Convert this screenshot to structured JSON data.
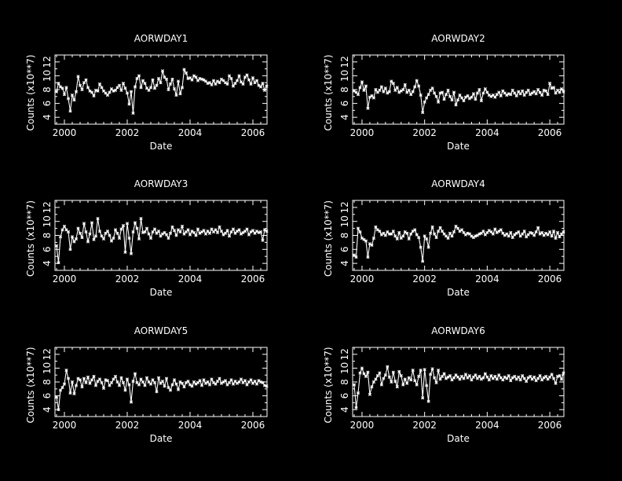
{
  "chart_data": [
    {
      "type": "line",
      "title": "AORWDAY1",
      "xlabel": "Date",
      "ylabel": "Counts (x10**7)",
      "xlim": [
        1999.7,
        2006.45
      ],
      "ylim": [
        3,
        13
      ],
      "xticks": [
        "2000",
        "2002",
        "2004",
        "2006"
      ],
      "yticks": [
        "4",
        "6",
        "8",
        "10",
        "12"
      ],
      "series_color": "#ffffff",
      "x_start": 1999.75,
      "x_step": 0.0625,
      "values": [
        7.7,
        8.9,
        8.4,
        8.2,
        7.3,
        8.3,
        6.7,
        4.9,
        7.2,
        6.5,
        7.7,
        9.9,
        8.6,
        8.0,
        9.0,
        9.4,
        8.3,
        7.8,
        7.6,
        7.1,
        7.9,
        7.8,
        8.8,
        8.3,
        7.8,
        7.5,
        7.2,
        7.6,
        8.1,
        7.8,
        7.9,
        8.3,
        8.6,
        7.9,
        8.9,
        8.2,
        7.5,
        5.9,
        7.7,
        4.6,
        8.4,
        9.6,
        10.0,
        8.3,
        9.3,
        8.9,
        8.2,
        7.9,
        8.3,
        9.4,
        8.2,
        8.6,
        9.6,
        9.0,
        10.7,
        9.8,
        9.5,
        8.0,
        8.8,
        9.5,
        8.1,
        7.2,
        9.2,
        7.4,
        8.3,
        10.9,
        10.4,
        9.6,
        9.7,
        9.4,
        10.0,
        9.8,
        9.3,
        9.6,
        9.5,
        9.4,
        9.2,
        8.9,
        9.0,
        8.7,
        9.3,
        8.8,
        9.2,
        9.0,
        9.5,
        9.3,
        9.0,
        8.8,
        10.0,
        9.6,
        8.5,
        8.9,
        9.3,
        10.0,
        9.1,
        8.8,
        9.8,
        10.1,
        9.4,
        8.8,
        9.7,
        9.0,
        9.3,
        8.6,
        8.4,
        8.9,
        7.9,
        8.5
      ]
    },
    {
      "type": "line",
      "title": "AORWDAY2",
      "xlabel": "Date",
      "ylabel": "Counts (x10**7)",
      "xlim": [
        1999.7,
        2006.45
      ],
      "ylim": [
        3,
        13
      ],
      "xticks": [
        "2000",
        "2002",
        "2004",
        "2006"
      ],
      "yticks": [
        "4",
        "6",
        "8",
        "10",
        "12"
      ],
      "series_color": "#ffffff",
      "x_start": 1999.75,
      "x_step": 0.0625,
      "values": [
        7.8,
        7.6,
        7.3,
        8.3,
        9.1,
        7.9,
        8.5,
        5.3,
        6.9,
        7.1,
        6.8,
        8.0,
        7.6,
        7.9,
        8.4,
        7.7,
        8.2,
        7.5,
        7.7,
        9.2,
        8.9,
        7.9,
        8.3,
        7.6,
        7.8,
        8.0,
        8.7,
        7.6,
        7.9,
        7.3,
        7.7,
        8.4,
        9.3,
        8.5,
        7.2,
        4.7,
        6.2,
        6.8,
        7.3,
        7.9,
        8.2,
        7.5,
        7.0,
        6.2,
        7.5,
        7.6,
        6.6,
        7.3,
        7.9,
        7.0,
        6.5,
        7.6,
        5.8,
        6.5,
        7.2,
        6.8,
        6.4,
        6.9,
        7.1,
        6.7,
        6.9,
        7.4,
        6.6,
        7.5,
        8.0,
        6.4,
        7.5,
        8.1,
        7.6,
        7.2,
        7.0,
        7.2,
        6.9,
        7.3,
        7.6,
        7.1,
        7.8,
        7.5,
        7.2,
        7.4,
        7.3,
        7.9,
        7.5,
        7.1,
        7.7,
        7.4,
        7.8,
        7.2,
        7.6,
        7.9,
        7.3,
        7.5,
        7.7,
        7.4,
        8.0,
        7.6,
        7.2,
        7.9,
        7.8,
        7.3,
        8.9,
        8.2,
        8.3,
        7.5,
        7.9,
        7.6,
        8.1,
        7.7
      ]
    },
    {
      "type": "line",
      "title": "AORWDAY3",
      "xlabel": "Date",
      "ylabel": "Counts (x10**7)",
      "xlim": [
        1999.7,
        2006.45
      ],
      "ylim": [
        3,
        13
      ],
      "xticks": [
        "2000",
        "2002",
        "2004",
        "2006"
      ],
      "yticks": [
        "4",
        "6",
        "8",
        "10",
        "12"
      ],
      "series_color": "#ffffff",
      "x_start": 1999.75,
      "x_step": 0.0625,
      "values": [
        6.5,
        4.1,
        7.8,
        8.8,
        9.3,
        8.8,
        8.5,
        6.0,
        7.8,
        7.1,
        7.5,
        9.0,
        8.3,
        7.7,
        9.7,
        8.5,
        7.1,
        8.2,
        9.8,
        7.4,
        7.9,
        10.4,
        8.6,
        7.9,
        7.5,
        8.3,
        8.6,
        8.0,
        7.2,
        7.6,
        8.8,
        8.3,
        7.6,
        8.9,
        9.4,
        5.6,
        9.7,
        7.6,
        5.4,
        8.5,
        9.8,
        9.0,
        7.5,
        10.4,
        8.4,
        8.5,
        9.0,
        8.2,
        7.6,
        8.5,
        8.9,
        8.3,
        8.6,
        7.9,
        8.2,
        8.4,
        8.1,
        7.6,
        8.3,
        9.2,
        8.7,
        8.0,
        8.8,
        8.5,
        9.3,
        8.2,
        8.5,
        8.8,
        8.1,
        8.6,
        8.4,
        8.0,
        8.9,
        8.3,
        8.5,
        8.7,
        8.2,
        8.6,
        8.3,
        8.9,
        8.5,
        8.8,
        8.4,
        9.2,
        8.6,
        8.1,
        8.3,
        8.7,
        7.9,
        8.5,
        8.9,
        8.3,
        8.6,
        8.8,
        8.2,
        8.4,
        8.6,
        8.9,
        8.1,
        8.5,
        8.7,
        8.3,
        8.6,
        8.4,
        8.5,
        7.3,
        8.8,
        8.6
      ]
    },
    {
      "type": "line",
      "title": "AORWDAY4",
      "xlabel": "Date",
      "ylabel": "Counts (x10**7)",
      "xlim": [
        1999.7,
        2006.45
      ],
      "ylim": [
        3,
        13
      ],
      "xticks": [
        "2000",
        "2002",
        "2004",
        "2006"
      ],
      "yticks": [
        "4",
        "6",
        "8",
        "10",
        "12"
      ],
      "series_color": "#ffffff",
      "x_start": 1999.75,
      "x_step": 0.0625,
      "values": [
        5.2,
        4.9,
        9.0,
        8.5,
        7.6,
        7.4,
        7.2,
        4.9,
        6.8,
        6.6,
        7.6,
        9.2,
        8.8,
        8.6,
        8.1,
        8.3,
        8.0,
        8.5,
        8.2,
        8.2,
        8.6,
        7.9,
        7.5,
        8.4,
        7.6,
        7.9,
        8.5,
        8.3,
        7.5,
        8.2,
        8.6,
        8.8,
        8.1,
        7.7,
        6.3,
        4.3,
        7.9,
        7.5,
        6.3,
        8.3,
        9.2,
        8.2,
        7.7,
        8.6,
        9.1,
        8.6,
        8.2,
        7.9,
        7.6,
        8.3,
        7.9,
        8.5,
        9.3,
        9.0,
        8.6,
        8.8,
        8.4,
        8.1,
        8.3,
        8.2,
        7.9,
        7.7,
        7.9,
        8.0,
        8.2,
        8.3,
        8.6,
        8.1,
        8.4,
        8.7,
        8.5,
        8.2,
        8.9,
        8.4,
        8.6,
        8.8,
        8.3,
        8.0,
        8.2,
        7.9,
        8.4,
        7.7,
        8.1,
        8.3,
        8.5,
        7.9,
        8.2,
        8.6,
        7.8,
        8.1,
        8.4,
        8.3,
        8.0,
        8.5,
        9.1,
        8.2,
        8.4,
        8.0,
        8.3,
        8.1,
        8.5,
        7.9,
        8.6,
        7.6,
        8.4,
        7.8,
        8.2,
        8.5
      ]
    },
    {
      "type": "line",
      "title": "AORWDAY5",
      "xlabel": "Date",
      "ylabel": "Counts (x10**7)",
      "xlim": [
        1999.7,
        2006.45
      ],
      "ylim": [
        3,
        13
      ],
      "xticks": [
        "2000",
        "2002",
        "2004",
        "2006"
      ],
      "yticks": [
        "4",
        "6",
        "8",
        "10",
        "12"
      ],
      "series_color": "#ffffff",
      "x_start": 1999.75,
      "x_step": 0.0625,
      "values": [
        5.8,
        4.0,
        6.8,
        7.2,
        7.7,
        9.7,
        8.5,
        6.4,
        8.0,
        6.3,
        7.5,
        8.5,
        8.3,
        7.3,
        8.5,
        7.9,
        8.7,
        7.8,
        8.3,
        8.8,
        7.5,
        8.1,
        8.4,
        7.9,
        7.1,
        8.3,
        8.2,
        7.5,
        7.9,
        8.4,
        8.8,
        8.0,
        7.5,
        8.6,
        7.9,
        6.8,
        8.4,
        7.6,
        5.1,
        8.1,
        9.2,
        7.9,
        7.6,
        8.4,
        8.0,
        7.5,
        8.6,
        8.0,
        7.7,
        8.3,
        7.9,
        6.6,
        8.6,
        7.8,
        8.1,
        7.4,
        8.5,
        7.2,
        6.8,
        7.6,
        8.3,
        7.7,
        6.9,
        8.0,
        7.8,
        7.3,
        7.9,
        8.1,
        7.6,
        7.4,
        8.0,
        7.7,
        7.9,
        8.2,
        7.5,
        8.3,
        7.8,
        8.0,
        7.6,
        8.4,
        7.9,
        7.7,
        8.1,
        8.5,
        7.8,
        8.0,
        8.2,
        7.6,
        7.9,
        8.3,
        7.7,
        8.1,
        7.8,
        8.0,
        8.4,
        7.9,
        8.2,
        7.6,
        8.0,
        8.3,
        7.8,
        8.1,
        7.7,
        8.2,
        8.0,
        7.9,
        7.5,
        7.4
      ]
    },
    {
      "type": "line",
      "title": "AORWDAY6",
      "xlabel": "Date",
      "ylabel": "Counts (x10**7)",
      "xlim": [
        1999.7,
        2006.45
      ],
      "ylim": [
        3,
        13
      ],
      "xticks": [
        "2000",
        "2002",
        "2004",
        "2006"
      ],
      "yticks": [
        "4",
        "6",
        "8",
        "10",
        "12"
      ],
      "series_color": "#ffffff",
      "x_start": 1999.75,
      "x_step": 0.0625,
      "values": [
        7.6,
        4.3,
        6.4,
        9.3,
        10.0,
        9.2,
        8.8,
        9.4,
        6.2,
        7.3,
        8.0,
        8.4,
        8.9,
        9.3,
        7.6,
        8.5,
        9.0,
        10.2,
        8.7,
        8.0,
        9.4,
        8.1,
        7.3,
        9.5,
        8.9,
        7.6,
        8.4,
        7.8,
        8.6,
        8.3,
        9.7,
        8.2,
        7.6,
        8.8,
        9.7,
        5.7,
        9.8,
        7.5,
        5.2,
        9.1,
        9.9,
        8.6,
        7.9,
        9.7,
        8.4,
        8.8,
        9.2,
        8.5,
        8.7,
        8.9,
        8.3,
        8.6,
        9.0,
        8.7,
        8.4,
        8.8,
        8.5,
        9.1,
        8.6,
        8.9,
        8.3,
        8.7,
        9.0,
        8.5,
        8.8,
        8.4,
        8.6,
        9.2,
        8.7,
        8.3,
        8.9,
        8.5,
        8.8,
        8.4,
        9.0,
        8.6,
        8.3,
        8.7,
        8.5,
        8.9,
        8.2,
        8.6,
        8.8,
        8.4,
        8.7,
        8.3,
        8.9,
        8.5,
        8.1,
        8.6,
        8.8,
        8.4,
        8.7,
        8.2,
        8.5,
        8.9,
        8.3,
        8.6,
        8.8,
        8.4,
        8.7,
        9.1,
        8.5,
        7.8,
        8.8,
        8.9,
        8.4,
        9.3
      ]
    }
  ]
}
